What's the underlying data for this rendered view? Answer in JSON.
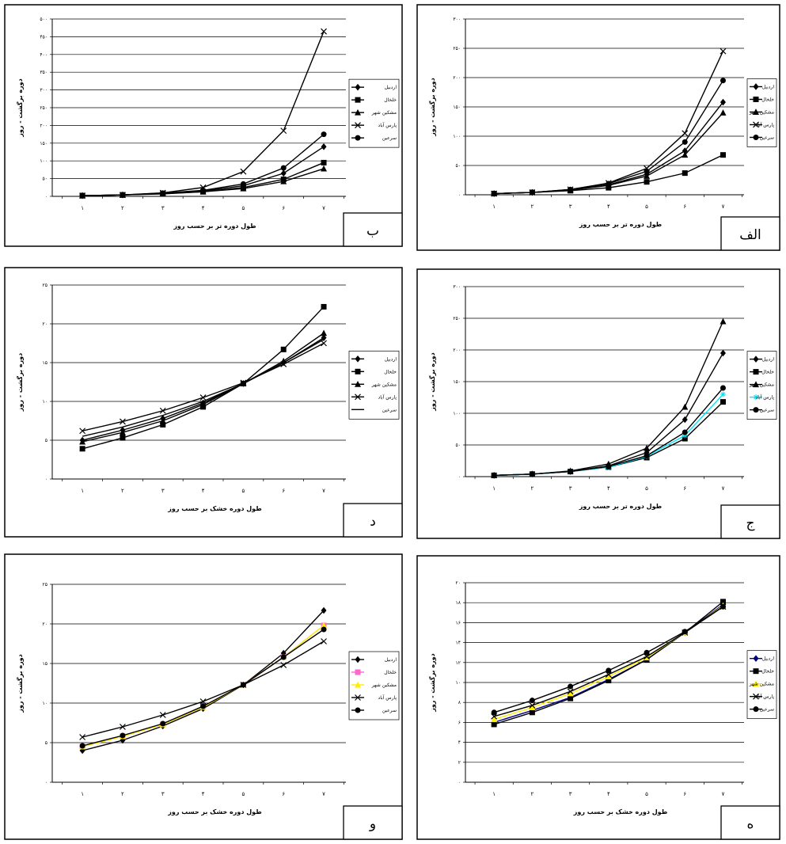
{
  "chart_data": [
    {
      "panel_id": "b",
      "type": "line",
      "panel_letter": "ب",
      "xlabel": "طول دوره تر بر حسب روز",
      "ylabel": "دوره برگشت - روز",
      "categories": [
        "۱",
        "۲",
        "۳",
        "۴",
        "۵",
        "۶",
        "۷"
      ],
      "yticks": [
        "۰",
        "۵۰",
        "۱۰۰",
        "۱۵۰",
        "۲۰۰",
        "۲۵۰",
        "۳۰۰",
        "۳۵۰",
        "۴۰۰",
        "۴۵۰",
        "۵۰۰"
      ],
      "ylim": [
        0,
        500
      ],
      "series": [
        {
          "name": "اردبیل",
          "values": [
            2,
            4,
            8,
            15,
            30,
            65,
            140
          ],
          "marker": "diamond"
        },
        {
          "name": "خلخال",
          "values": [
            2,
            4,
            8,
            13,
            25,
            48,
            95
          ],
          "marker": "square"
        },
        {
          "name": "مشکین شهر",
          "values": [
            2,
            4,
            7,
            13,
            22,
            42,
            78
          ],
          "marker": "triangle"
        },
        {
          "name": "پارس آباد",
          "values": [
            2,
            4,
            10,
            25,
            70,
            185,
            465
          ],
          "marker": "x"
        },
        {
          "name": "سرعین",
          "values": [
            2,
            4,
            9,
            17,
            35,
            80,
            175
          ],
          "marker": "circle"
        }
      ]
    },
    {
      "panel_id": "alef",
      "type": "line",
      "panel_letter": "الف",
      "xlabel": "طول دوره تر بر حسب روز",
      "ylabel": "دوره برگشت - روز",
      "categories": [
        "۱",
        "۲",
        "۳",
        "۴",
        "۵",
        "۶",
        "۷"
      ],
      "yticks": [
        "۰",
        "۵۰",
        "۱۰۰",
        "۱۵۰",
        "۲۰۰",
        "۲۵۰",
        "۳۰۰"
      ],
      "ylim": [
        0,
        300
      ],
      "series": [
        {
          "name": "اردبیل",
          "values": [
            2,
            4,
            8,
            17,
            35,
            75,
            158
          ],
          "marker": "diamond"
        },
        {
          "name": "خلخال",
          "values": [
            2,
            4,
            7,
            12,
            22,
            37,
            68
          ],
          "marker": "square"
        },
        {
          "name": "مشکین شهر",
          "values": [
            2,
            4,
            8,
            16,
            32,
            68,
            140
          ],
          "marker": "triangle"
        },
        {
          "name": "پارس آباد",
          "values": [
            2,
            4,
            9,
            20,
            45,
            105,
            245
          ],
          "marker": "x"
        },
        {
          "name": "سرعین",
          "values": [
            2,
            4,
            9,
            19,
            40,
            90,
            195
          ],
          "marker": "circle"
        }
      ]
    },
    {
      "panel_id": "dal",
      "type": "line",
      "panel_letter": "د",
      "xlabel": "طول دوره خشک بر حسب روز",
      "ylabel": "دوره برگشت - روز",
      "categories": [
        "۱",
        "۲",
        "۳",
        "۴",
        "۵",
        "۶",
        "۷"
      ],
      "yticks": [
        "۰",
        "۵",
        "۱۰",
        "۱۵",
        "۲۰",
        "۲۵"
      ],
      "ylim": [
        0,
        25
      ],
      "series": [
        {
          "name": "اردبیل",
          "values": [
            5,
            6.3,
            7.8,
            9.8,
            12.3,
            15,
            18.2
          ],
          "marker": "diamond"
        },
        {
          "name": "خلخال",
          "values": [
            3.9,
            5.3,
            7,
            9.3,
            12.3,
            16.7,
            22.2
          ],
          "marker": "square"
        },
        {
          "name": "مشکین شهر",
          "values": [
            4.8,
            6,
            7.5,
            9.6,
            12.3,
            15.2,
            18.8
          ],
          "marker": "triangle"
        },
        {
          "name": "پارس آباد",
          "values": [
            6.2,
            7.4,
            8.8,
            10.5,
            12.4,
            14.8,
            17.5
          ],
          "marker": "x"
        },
        {
          "name": "سرعین",
          "values": [
            5.5,
            6.7,
            8.2,
            10,
            12.3,
            15,
            18
          ]
        }
      ]
    },
    {
      "panel_id": "jim",
      "type": "line",
      "panel_letter": "ج",
      "xlabel": "طول دوره تر بر حسب روز",
      "ylabel": "دوره برگشت - روز",
      "categories": [
        "۱",
        "۲",
        "۳",
        "۴",
        "۵",
        "۶",
        "۷"
      ],
      "yticks": [
        "۰",
        "۵۰",
        "۱۰۰",
        "۱۵۰",
        "۲۰۰",
        "۲۵۰",
        "۳۰۰"
      ],
      "ylim": [
        0,
        300
      ],
      "series": [
        {
          "name": "اردبیل",
          "values": [
            2,
            4,
            8,
            17,
            38,
            90,
            195
          ],
          "marker": "diamond"
        },
        {
          "name": "خلخال",
          "values": [
            2,
            4,
            8,
            15,
            30,
            60,
            118
          ],
          "marker": "square"
        },
        {
          "name": "مشکین شهر",
          "values": [
            2,
            4,
            9,
            20,
            45,
            110,
            245
          ],
          "marker": "triangle"
        },
        {
          "name": "پارس آباد",
          "values": [
            2,
            4,
            8,
            15,
            32,
            65,
            130
          ],
          "marker": "star",
          "color": "#00e5ff"
        },
        {
          "name": "سرعین",
          "values": [
            2,
            4,
            8,
            16,
            33,
            70,
            140
          ],
          "marker": "circle"
        }
      ]
    },
    {
      "panel_id": "vav",
      "type": "line",
      "panel_letter": "و",
      "xlabel": "طول دوره خشک بر حسب روز",
      "ylabel": "دوره برگشت - روز",
      "categories": [
        "۱",
        "۲",
        "۳",
        "۴",
        "۵",
        "۶",
        "۷"
      ],
      "yticks": [
        "۰",
        "۵",
        "۱۰",
        "۱۵",
        "۲۰",
        "۲۵"
      ],
      "ylim": [
        0,
        25
      ],
      "series": [
        {
          "name": "اردبیل",
          "values": [
            4,
            5.3,
            7.1,
            9.3,
            12.3,
            16.3,
            21.7
          ],
          "marker": "diamond"
        },
        {
          "name": "خلخال",
          "values": [
            4.5,
            5.8,
            7.3,
            9.5,
            12.3,
            15.8,
            19.8
          ],
          "marker": "square",
          "color": "#ff66cc"
        },
        {
          "name": "مشکین شهر",
          "values": [
            4.5,
            5.8,
            7.3,
            9.5,
            12.3,
            15.8,
            19.8
          ],
          "marker": "triangle",
          "color": "#ffee00"
        },
        {
          "name": "پارس آباد",
          "values": [
            5.7,
            7,
            8.5,
            10.2,
            12.3,
            14.8,
            17.8
          ],
          "marker": "x"
        },
        {
          "name": "سرعین",
          "values": [
            4.6,
            5.9,
            7.4,
            9.6,
            12.3,
            15.8,
            19.3
          ],
          "marker": "circle"
        }
      ]
    },
    {
      "panel_id": "he",
      "type": "line",
      "panel_letter": "ه",
      "xlabel": "طول دوره خشک بر حسب روز",
      "ylabel": "دوره برگشت - روز",
      "categories": [
        "۱",
        "۲",
        "۳",
        "۴",
        "۵",
        "۶",
        "۷"
      ],
      "yticks": [
        "۰",
        "۲",
        "۴",
        "۶",
        "۸",
        "۱۰",
        "۱۲",
        "۱۴",
        "۱۶",
        "۱۸",
        "۲۰"
      ],
      "ylim": [
        0,
        20
      ],
      "series": [
        {
          "name": "اردبیل",
          "values": [
            6,
            7.2,
            8.5,
            10.3,
            12.3,
            15,
            17.8
          ],
          "marker": "diamond",
          "color": "#000080"
        },
        {
          "name": "خلخال",
          "values": [
            5.8,
            7,
            8.4,
            10.2,
            12.3,
            15,
            18.1
          ],
          "marker": "square"
        },
        {
          "name": "مشکین شهر",
          "values": [
            6.3,
            7.5,
            8.9,
            10.6,
            12.5,
            15,
            17.7
          ],
          "marker": "triangle",
          "color": "#ffee00"
        },
        {
          "name": "پارس آباد",
          "values": [
            6.6,
            7.7,
            9.1,
            10.8,
            12.6,
            15,
            17.6
          ],
          "marker": "x"
        },
        {
          "name": "سرعین",
          "values": [
            7,
            8.2,
            9.6,
            11.2,
            13,
            15.1,
            17.6
          ],
          "marker": "circle"
        }
      ]
    }
  ]
}
